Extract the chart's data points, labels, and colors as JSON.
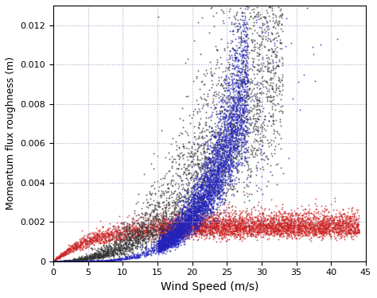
{
  "title": "",
  "xlabel": "Wind Speed (m/s)",
  "ylabel": "Momentum flux roughness (m)",
  "xlim": [
    0,
    45
  ],
  "ylim": [
    0,
    0.013
  ],
  "xticks": [
    0,
    5,
    10,
    15,
    20,
    25,
    30,
    35,
    40,
    45
  ],
  "yticks": [
    0,
    0.002,
    0.004,
    0.006,
    0.008,
    0.01,
    0.012
  ],
  "background_color": "#ffffff",
  "grid_color": "#aaaacc",
  "blue_color": "#2222bb",
  "black_color": "#333333",
  "red_color": "#cc2222",
  "marker_size": 2,
  "alpha": 0.7,
  "seed": 42
}
